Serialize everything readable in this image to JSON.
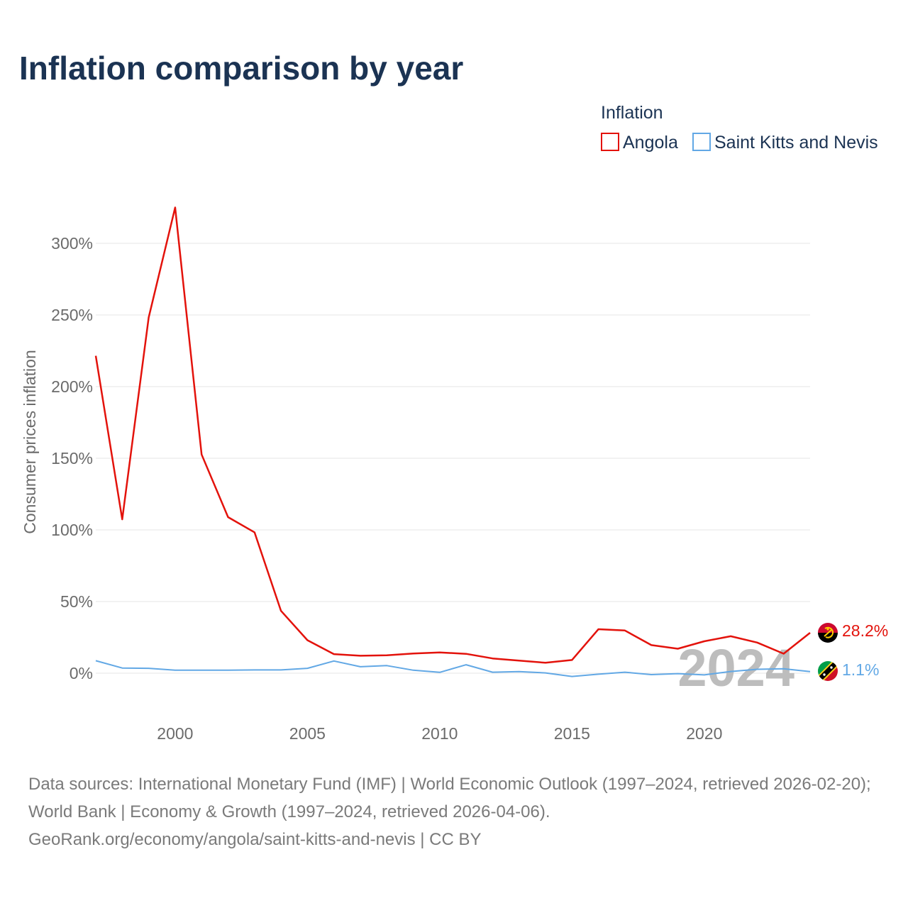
{
  "chart_data": {
    "type": "line",
    "title": "Inflation comparison by year",
    "legend_title": "Inflation",
    "legend_position": "top-right",
    "xlabel": "",
    "ylabel": "Consumer prices inflation",
    "x_ticks": [
      2000,
      2005,
      2010,
      2015,
      2020
    ],
    "y_ticks": [
      0,
      50,
      100,
      150,
      200,
      250,
      300
    ],
    "y_tick_labels": [
      "0%",
      "50%",
      "100%",
      "150%",
      "200%",
      "250%",
      "300%"
    ],
    "xlim": [
      1997,
      2024
    ],
    "ylim": [
      -25,
      320
    ],
    "grid": true,
    "current_year": "2024",
    "x": [
      1997,
      1998,
      1999,
      2000,
      2001,
      2002,
      2003,
      2004,
      2005,
      2006,
      2007,
      2008,
      2009,
      2010,
      2011,
      2012,
      2013,
      2014,
      2015,
      2016,
      2017,
      2018,
      2019,
      2020,
      2021,
      2022,
      2023,
      2024
    ],
    "series": [
      {
        "name": "Angola",
        "color": "#e3120b",
        "end_label": "28.2%",
        "flag": "angola-flag-icon",
        "values": [
          221.5,
          107.4,
          248.2,
          325.0,
          152.6,
          108.9,
          98.3,
          43.5,
          23.0,
          13.3,
          12.2,
          12.5,
          13.7,
          14.5,
          13.5,
          10.3,
          8.8,
          7.3,
          9.2,
          30.7,
          29.8,
          19.6,
          17.1,
          22.3,
          25.8,
          21.4,
          13.6,
          28.2
        ]
      },
      {
        "name": "Saint Kitts and Nevis",
        "color": "#62a8e5",
        "end_label": "1.1%",
        "flag": "saint-kitts-and-nevis-flag-icon",
        "values": [
          8.7,
          3.6,
          3.4,
          2.1,
          2.1,
          2.1,
          2.3,
          2.3,
          3.4,
          8.5,
          4.5,
          5.3,
          2.1,
          0.6,
          5.9,
          0.7,
          1.1,
          0.2,
          -2.3,
          -0.7,
          0.7,
          -1.0,
          -0.3,
          -1.2,
          1.2,
          2.7,
          3.1,
          1.1
        ]
      }
    ]
  },
  "footer": {
    "sources": "Data sources: International Monetary Fund (IMF) | World Economic Outlook (1997–2024, retrieved 2026-02-20); World Bank | Economy & Growth (1997–2024, retrieved 2026-04-06).",
    "credit": "GeoRank.org/economy/angola/saint-kitts-and-nevis | CC BY"
  },
  "colors": {
    "title": "#1b3353",
    "grid": "#e6e6e6",
    "tick": "#6b6b6b"
  }
}
